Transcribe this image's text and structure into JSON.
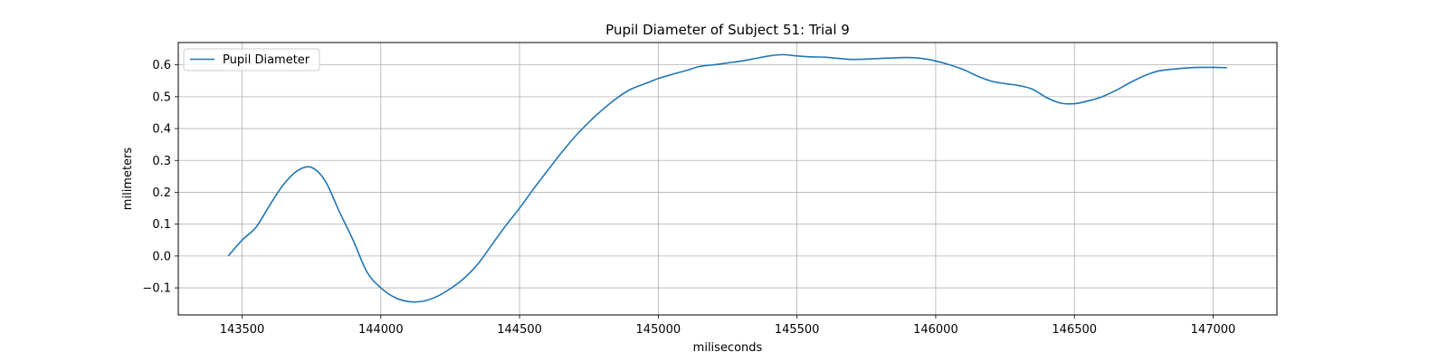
{
  "chart_data": {
    "type": "line",
    "title": "Pupil Diameter of Subject 51: Trial 9",
    "xlabel": "miliseconds",
    "ylabel": "milimeters",
    "xlim": [
      143270,
      147230
    ],
    "ylim": [
      -0.185,
      0.67
    ],
    "x_ticks": [
      143500,
      144000,
      144500,
      145000,
      145500,
      146000,
      146500,
      147000
    ],
    "y_ticks": [
      -0.1,
      0.0,
      0.1,
      0.2,
      0.3,
      0.4,
      0.5,
      0.6
    ],
    "y_tick_labels": [
      "−0.1",
      "0.0",
      "0.1",
      "0.2",
      "0.3",
      "0.4",
      "0.5",
      "0.6"
    ],
    "grid": true,
    "legend_position": "upper left",
    "series_color": "#1f77b4",
    "series": [
      {
        "name": "Pupil Diameter",
        "x": [
          143450,
          143500,
          143550,
          143600,
          143650,
          143700,
          143750,
          143800,
          143850,
          143900,
          143950,
          144000,
          144050,
          144100,
          144150,
          144200,
          144250,
          144300,
          144350,
          144400,
          144450,
          144500,
          144550,
          144600,
          144650,
          144700,
          144750,
          144800,
          144850,
          144900,
          144950,
          145000,
          145050,
          145100,
          145150,
          145200,
          145250,
          145300,
          145350,
          145400,
          145450,
          145500,
          145550,
          145600,
          145650,
          145700,
          145750,
          145800,
          145850,
          145900,
          145950,
          146000,
          146050,
          146100,
          146150,
          146200,
          146250,
          146300,
          146350,
          146400,
          146450,
          146500,
          146550,
          146600,
          146650,
          146700,
          146750,
          146800,
          146850,
          146900,
          146950,
          147000,
          147050
        ],
        "values": [
          0.0,
          0.05,
          0.09,
          0.16,
          0.225,
          0.268,
          0.278,
          0.235,
          0.14,
          0.05,
          -0.05,
          -0.1,
          -0.13,
          -0.143,
          -0.142,
          -0.128,
          -0.103,
          -0.07,
          -0.025,
          0.035,
          0.095,
          0.15,
          0.21,
          0.267,
          0.323,
          0.375,
          0.42,
          0.46,
          0.495,
          0.523,
          0.54,
          0.557,
          0.57,
          0.582,
          0.595,
          0.6,
          0.606,
          0.612,
          0.62,
          0.628,
          0.632,
          0.628,
          0.625,
          0.624,
          0.62,
          0.617,
          0.618,
          0.62,
          0.622,
          0.623,
          0.62,
          0.612,
          0.6,
          0.585,
          0.565,
          0.549,
          0.541,
          0.535,
          0.523,
          0.497,
          0.48,
          0.478,
          0.487,
          0.5,
          0.52,
          0.544,
          0.565,
          0.58,
          0.586,
          0.59,
          0.592,
          0.592,
          0.591
        ]
      }
    ]
  }
}
